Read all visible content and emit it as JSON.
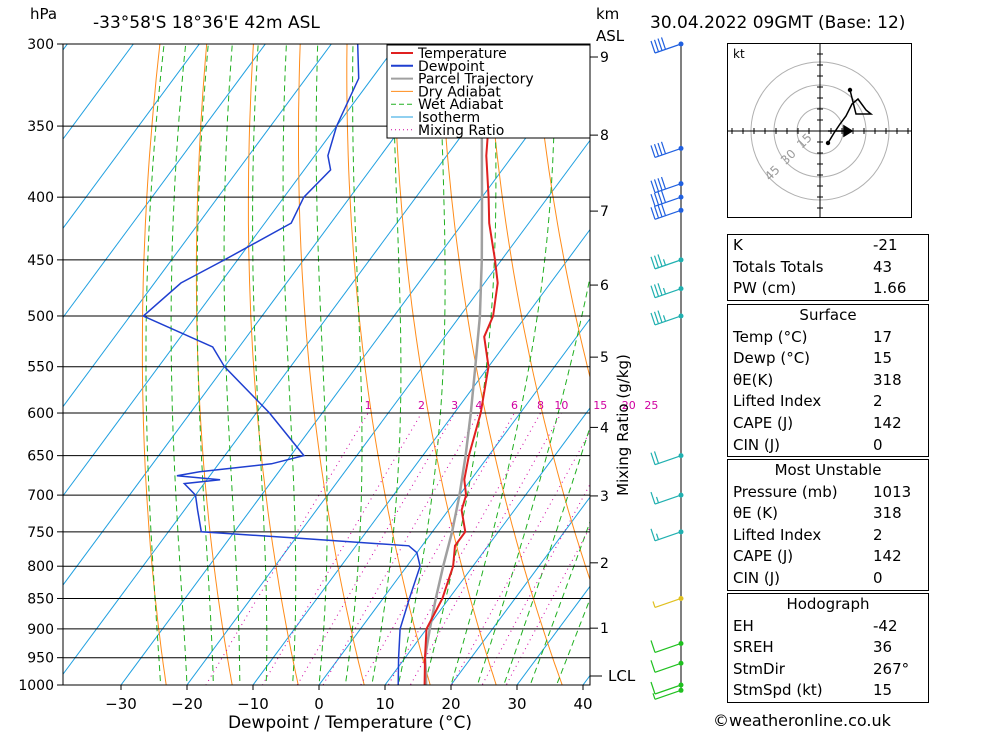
{
  "header": {
    "pressure_unit": "hPa",
    "location": "-33°58'S  18°36'E  42m  ASL",
    "height_unit": "km",
    "height_unit2": "ASL",
    "datetime": "30.04.2022  09GMT  (Base: 12)"
  },
  "axes": {
    "xlabel": "Dewpoint / Temperature (°C)",
    "mixing_label": "Mixing Ratio (g/kg)",
    "lcl_label": "LCL"
  },
  "legend": [
    "Temperature",
    "Dewpoint",
    "Parcel Trajectory",
    "Dry Adiabat",
    "Wet Adiabat",
    "Isotherm",
    "Mixing Ratio"
  ],
  "colors": {
    "temperature": "#e02020",
    "dewpoint": "#1f3fd0",
    "parcel": "#a0a0a0",
    "dry_adiabat": "#ff8c1a",
    "wet_adiabat": "#20b020",
    "isotherm": "#20a0e0",
    "mixing": "#d000a0"
  },
  "hodograph": {
    "unit": "kt",
    "rings": [
      "15",
      "30",
      "45"
    ]
  },
  "indices": [
    {
      "key": "K",
      "value": "-21"
    },
    {
      "key": "Totals Totals",
      "value": "43"
    },
    {
      "key": "PW (cm)",
      "value": "1.66"
    }
  ],
  "surface": {
    "title": "Surface",
    "rows": [
      {
        "key": "Temp (°C)",
        "value": "17"
      },
      {
        "key": "Dewp (°C)",
        "value": "15"
      },
      {
        "key": "θE(K)",
        "value": "318"
      },
      {
        "key": "Lifted Index",
        "value": "2"
      },
      {
        "key": "CAPE (J)",
        "value": "142"
      },
      {
        "key": "CIN (J)",
        "value": "0"
      }
    ]
  },
  "most_unstable": {
    "title": "Most Unstable",
    "rows": [
      {
        "key": "Pressure (mb)",
        "value": "1013"
      },
      {
        "key": "θE (K)",
        "value": "318"
      },
      {
        "key": "Lifted Index",
        "value": "2"
      },
      {
        "key": "CAPE (J)",
        "value": "142"
      },
      {
        "key": "CIN (J)",
        "value": "0"
      }
    ]
  },
  "hodograph_table": {
    "title": "Hodograph",
    "rows": [
      {
        "key": "EH",
        "value": "-42"
      },
      {
        "key": "SREH",
        "value": "36"
      },
      {
        "key": "StmDir",
        "value": "267°"
      },
      {
        "key": "StmSpd (kt)",
        "value": "15"
      }
    ]
  },
  "footer": "©weatheronline.co.uk",
  "chart_data": {
    "type": "line",
    "title": "",
    "xlabel": "Dewpoint / Temperature (°C)",
    "ylabel": "hPa",
    "xlim": [
      -40,
      40
    ],
    "x_ticks": [
      "-30",
      "-20",
      "-10",
      "0",
      "10",
      "20",
      "30",
      "40"
    ],
    "pressure_levels": [
      1000,
      950,
      900,
      850,
      800,
      750,
      700,
      650,
      600,
      550,
      500,
      450,
      400,
      350,
      300
    ],
    "pressure_labels": [
      "1000",
      "950",
      "900",
      "850",
      "800",
      "750",
      "700",
      "650",
      "600",
      "550",
      "500",
      "450",
      "400",
      "350",
      "300"
    ],
    "height_km": [
      "1",
      "2",
      "3",
      "4",
      "5",
      "6",
      "7",
      "8",
      "9"
    ],
    "mixing_ratio_labels": [
      "1",
      "2",
      "3",
      "4",
      "6",
      "8",
      "10",
      "15",
      "20",
      "25"
    ],
    "series": [
      {
        "name": "Temperature",
        "points": [
          [
            1013,
            17
          ],
          [
            1000,
            16
          ],
          [
            950,
            13
          ],
          [
            900,
            10
          ],
          [
            850,
            9
          ],
          [
            800,
            7
          ],
          [
            770,
            5
          ],
          [
            750,
            5
          ],
          [
            720,
            2
          ],
          [
            700,
            1
          ],
          [
            680,
            -1
          ],
          [
            650,
            -3
          ],
          [
            600,
            -6
          ],
          [
            550,
            -10
          ],
          [
            520,
            -14
          ],
          [
            500,
            -15
          ],
          [
            470,
            -18
          ],
          [
            450,
            -21
          ],
          [
            420,
            -26
          ],
          [
            400,
            -29
          ],
          [
            370,
            -34
          ],
          [
            350,
            -37
          ],
          [
            330,
            -40
          ],
          [
            310,
            -43
          ],
          [
            300,
            -45
          ]
        ]
      },
      {
        "name": "Dewpoint",
        "points": [
          [
            1013,
            15
          ],
          [
            1000,
            12
          ],
          [
            950,
            9
          ],
          [
            900,
            6
          ],
          [
            850,
            4
          ],
          [
            800,
            2
          ],
          [
            780,
            0
          ],
          [
            770,
            -2
          ],
          [
            760,
            -18
          ],
          [
            750,
            -35
          ],
          [
            720,
            -38
          ],
          [
            700,
            -40
          ],
          [
            685,
            -43
          ],
          [
            680,
            -38
          ],
          [
            675,
            -45
          ],
          [
            670,
            -42
          ],
          [
            660,
            -32
          ],
          [
            650,
            -28
          ],
          [
            600,
            -38
          ],
          [
            550,
            -50
          ],
          [
            530,
            -54
          ],
          [
            500,
            -68
          ],
          [
            470,
            -66
          ],
          [
            450,
            -62
          ],
          [
            420,
            -56
          ],
          [
            400,
            -57
          ],
          [
            380,
            -56
          ],
          [
            370,
            -58
          ],
          [
            350,
            -60
          ],
          [
            320,
            -62
          ],
          [
            300,
            -66
          ]
        ]
      },
      {
        "name": "Parcel Trajectory",
        "points": [
          [
            1013,
            17
          ],
          [
            980,
            15
          ],
          [
            950,
            13
          ],
          [
            900,
            10.5
          ],
          [
            850,
            8
          ],
          [
            800,
            5.5
          ],
          [
            750,
            3
          ],
          [
            700,
            0
          ],
          [
            650,
            -3.5
          ],
          [
            600,
            -7.5
          ],
          [
            550,
            -12
          ],
          [
            500,
            -17
          ],
          [
            450,
            -23
          ],
          [
            400,
            -30
          ],
          [
            350,
            -38
          ],
          [
            300,
            -47
          ]
        ]
      }
    ],
    "wind_barbs_kt": [
      {
        "pressure": 1013,
        "speed": 5
      },
      {
        "pressure": 1000,
        "speed": 10
      },
      {
        "pressure": 960,
        "speed": 10
      },
      {
        "pressure": 925,
        "speed": 10
      },
      {
        "pressure": 850,
        "speed": 5
      },
      {
        "pressure": 750,
        "speed": 15
      },
      {
        "pressure": 700,
        "speed": 15
      },
      {
        "pressure": 650,
        "speed": 20
      },
      {
        "pressure": 500,
        "speed": 35
      },
      {
        "pressure": 475,
        "speed": 35
      },
      {
        "pressure": 450,
        "speed": 35
      },
      {
        "pressure": 410,
        "speed": 40
      },
      {
        "pressure": 400,
        "speed": 40
      },
      {
        "pressure": 390,
        "speed": 40
      },
      {
        "pressure": 365,
        "speed": 40
      },
      {
        "pressure": 300,
        "speed": 40
      }
    ]
  }
}
